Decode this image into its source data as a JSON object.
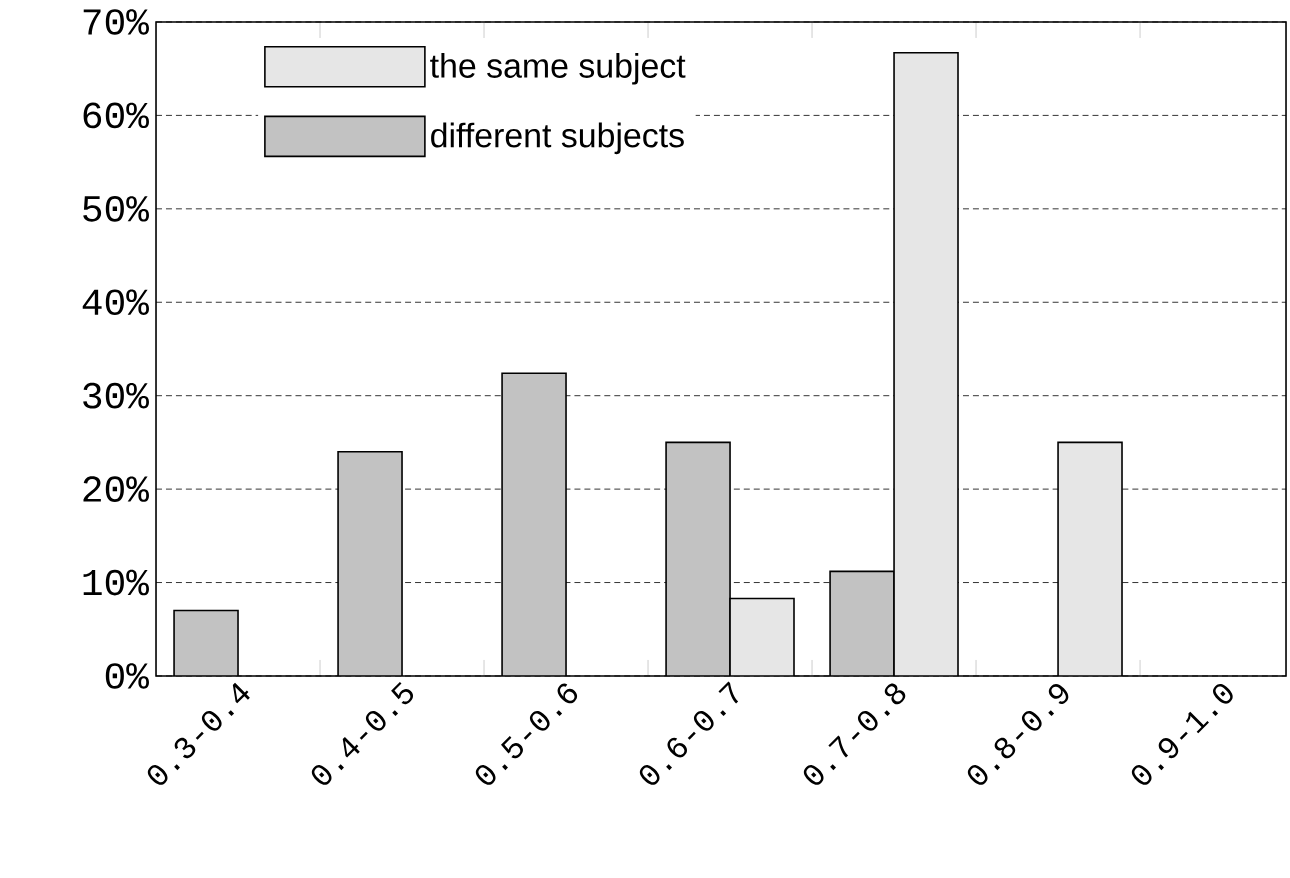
{
  "chart_data": {
    "type": "bar",
    "categories": [
      "0.3-0.4",
      "0.4-0.5",
      "0.5-0.6",
      "0.6-0.7",
      "0.7-0.8",
      "0.8-0.9",
      "0.9-1.0"
    ],
    "series": [
      {
        "name": "the same subject",
        "color": "#e6e6e6",
        "values": [
          null,
          null,
          null,
          8.3,
          66.7,
          25,
          null
        ]
      },
      {
        "name": "different subjects",
        "color": "#c2c2c2",
        "values": [
          7,
          24,
          32.4,
          25,
          11.2,
          null,
          null
        ]
      }
    ],
    "ylim": [
      0,
      70
    ],
    "yticks": [
      {
        "value": 0,
        "label": "0%"
      },
      {
        "value": 10,
        "label": "10%"
      },
      {
        "value": 20,
        "label": "20%"
      },
      {
        "value": 30,
        "label": "30%"
      },
      {
        "value": 40,
        "label": "40%"
      },
      {
        "value": 50,
        "label": "50%"
      },
      {
        "value": 60,
        "label": "60%"
      },
      {
        "value": 70,
        "label": "70%"
      }
    ],
    "grid": "y",
    "legend": "top left"
  }
}
